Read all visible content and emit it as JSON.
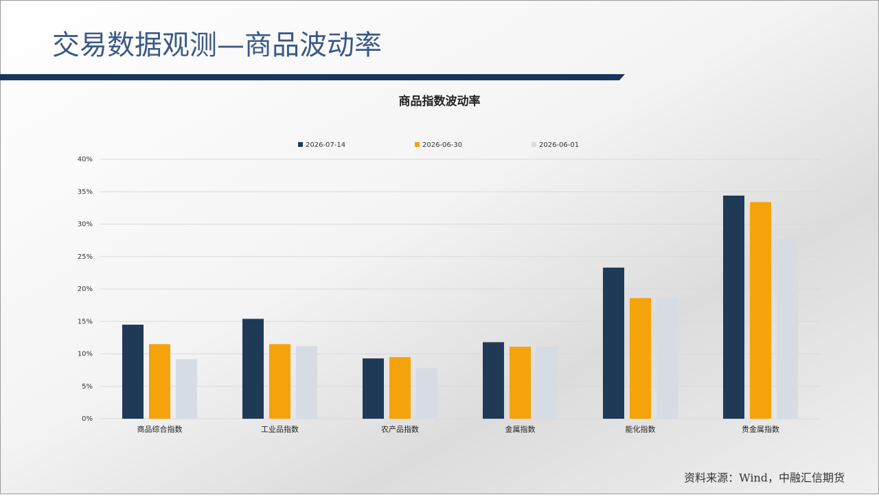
{
  "header": {
    "title": "交易数据观测—商品波动率"
  },
  "chart_data": {
    "type": "bar",
    "title": "商品指数波动率",
    "categories": [
      "商品综合指数",
      "工业品指数",
      "农产品指数",
      "金属指数",
      "能化指数",
      "贵金属指数"
    ],
    "series": [
      {
        "name": "2026-07-14",
        "color": "#1f3a57",
        "values": [
          14.5,
          15.4,
          9.3,
          11.8,
          23.3,
          34.4
        ]
      },
      {
        "name": "2026-06-30",
        "color": "#f5a30a",
        "values": [
          11.5,
          11.5,
          9.5,
          11.1,
          18.6,
          33.4
        ]
      },
      {
        "name": "2026-06-01",
        "color": "#d6dce4",
        "values": [
          9.2,
          11.2,
          7.8,
          11.1,
          18.6,
          27.7
        ]
      }
    ],
    "ylim": [
      0,
      40
    ],
    "yticks": [
      {
        "value": 0,
        "label": "0%"
      },
      {
        "value": 5,
        "label": "5%"
      },
      {
        "value": 10,
        "label": "10%"
      },
      {
        "value": 15,
        "label": "15%"
      },
      {
        "value": 20,
        "label": "20%"
      },
      {
        "value": 25,
        "label": "25%"
      },
      {
        "value": 30,
        "label": "30%"
      },
      {
        "value": 35,
        "label": "35%"
      },
      {
        "value": 40,
        "label": "40%"
      }
    ],
    "grid": true,
    "legend": "top"
  },
  "footer": {
    "source": "资料来源：Wind，中融汇信期货"
  }
}
